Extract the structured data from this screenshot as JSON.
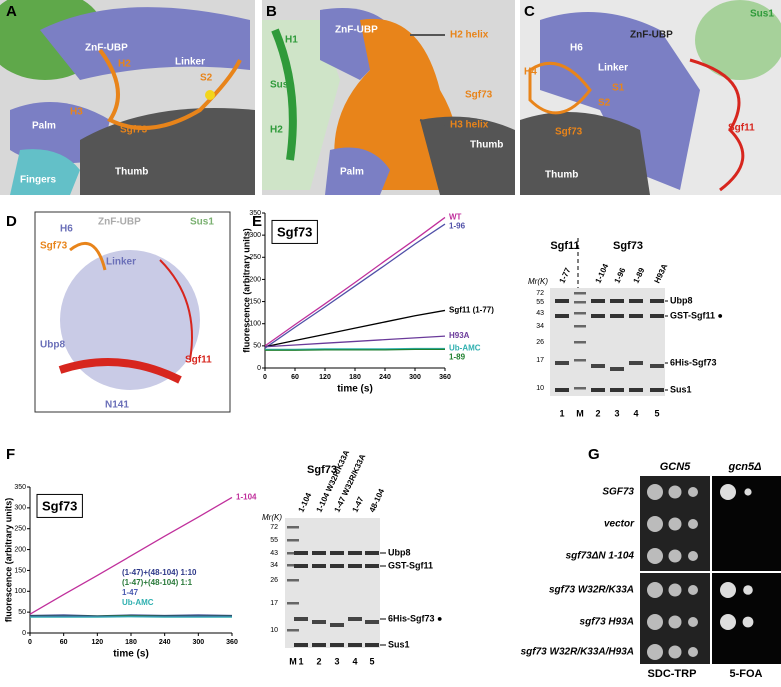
{
  "panels": {
    "a": {
      "label": "A",
      "texts": [
        "ZnF-UBP",
        "Linker",
        "H2",
        "Palm",
        "H3",
        "Sgf73",
        "S2",
        "Fingers",
        "Thumb"
      ]
    },
    "b": {
      "label": "B",
      "texts": [
        "H1",
        "ZnF-UBP",
        "H2 helix",
        "Sus1",
        "Sgf73",
        "H2",
        "H3 helix",
        "Thumb",
        "Palm"
      ]
    },
    "c": {
      "label": "C",
      "texts": [
        "ZnF-UBP",
        "Sus1",
        "H6",
        "H4",
        "Linker",
        "S1",
        "S2",
        "Sgf73",
        "Sgf11",
        "Thumb"
      ]
    },
    "d": {
      "label": "D",
      "texts": [
        "H6",
        "ZnF-UBP",
        "Sus1",
        "Sgf73",
        "Linker",
        "Ubp8",
        "Sgf11",
        "N141"
      ]
    },
    "e": {
      "label": "E"
    },
    "f": {
      "label": "F"
    },
    "g": {
      "label": "G",
      "columns": [
        "GCN5",
        "gcn5Δ"
      ],
      "rows": [
        "SGF73",
        "vector",
        "sgf73ΔN 1-104",
        "sgf73 W32R/K33A",
        "sgf73 H93A",
        "sgf73 W32R/K33A/H93A"
      ],
      "media": [
        "SDC-TRP",
        "5-FOA"
      ]
    }
  },
  "gels": [
    {
      "groups": [
        "Sgf11",
        "Sgf73"
      ],
      "mr_label": "Mr(K)",
      "markers": [
        "72",
        "55",
        "43",
        "34",
        "26",
        "17",
        "10"
      ],
      "lanes": [
        "1-77",
        "1-104",
        "1-96",
        "1-89",
        "H93A"
      ],
      "lane_numbers": [
        "1",
        "M",
        "2",
        "3",
        "4",
        "5"
      ],
      "bands": [
        "Ubp8",
        "GST-Sgf11 ●",
        "6His-Sgf73",
        "Sus1"
      ]
    },
    {
      "groups": [
        "Sgf73"
      ],
      "mr_label": "Mr(K)",
      "markers": [
        "72",
        "55",
        "43",
        "34",
        "26",
        "17",
        "10"
      ],
      "lanes": [
        "1-104",
        "1-104 W32R/K33A",
        "1-47 W32R/K33A",
        "1-47",
        "48-104"
      ],
      "lane_numbers": [
        "M",
        "1",
        "2",
        "3",
        "4",
        "5"
      ],
      "bands": [
        "Ubp8",
        "GST-Sgf11",
        "6His-Sgf73 ●",
        "Sus1"
      ]
    }
  ],
  "chart_data": [
    {
      "type": "line",
      "title": "Sgf73",
      "x_label": "time (s)",
      "y_label": "fluorescence (arbitrary units)",
      "xlim": [
        0,
        360
      ],
      "ylim": [
        0,
        350
      ],
      "xticks": [
        0,
        60,
        120,
        180,
        240,
        300,
        360
      ],
      "yticks": [
        0,
        50,
        100,
        150,
        200,
        250,
        300,
        350
      ],
      "x": [
        0,
        60,
        120,
        180,
        240,
        300,
        360
      ],
      "series": [
        {
          "name": "WT",
          "color": "#c0309c",
          "values": [
            50,
            98,
            145,
            193,
            242,
            290,
            340
          ]
        },
        {
          "name": "1-96",
          "color": "#5050a8",
          "values": [
            45,
            92,
            138,
            185,
            232,
            280,
            325
          ]
        },
        {
          "name": "Sgf11 (1-77)",
          "color": "#000000",
          "values": [
            48,
            62,
            76,
            90,
            104,
            118,
            130
          ]
        },
        {
          "name": "H93A",
          "color": "#6a3a9a",
          "values": [
            48,
            52,
            56,
            60,
            64,
            68,
            72
          ]
        },
        {
          "name": "Ub-AMC",
          "color": "#30b0b0",
          "values": [
            42,
            42,
            43,
            43,
            43,
            44,
            44
          ]
        },
        {
          "name": "1-89",
          "color": "#208030",
          "values": [
            40,
            40,
            41,
            41,
            41,
            42,
            42
          ]
        }
      ]
    },
    {
      "type": "line",
      "title": "Sgf73",
      "x_label": "time (s)",
      "y_label": "fluorescence (arbitrary units)",
      "xlim": [
        0,
        360
      ],
      "ylim": [
        0,
        350
      ],
      "xticks": [
        0,
        60,
        120,
        180,
        240,
        300,
        360
      ],
      "yticks": [
        0,
        50,
        100,
        150,
        200,
        250,
        300,
        350
      ],
      "x": [
        0,
        60,
        120,
        180,
        240,
        300,
        360
      ],
      "series": [
        {
          "name": "1-104",
          "color": "#c0309c",
          "values": [
            45,
            92,
            138,
            185,
            232,
            278,
            325
          ]
        },
        {
          "name": "(1-47)+(48-104) 1:10",
          "color": "#2f3a8a",
          "values": [
            42,
            43,
            41,
            43,
            42,
            43,
            42
          ]
        },
        {
          "name": "(1-47)+(48-104) 1:1",
          "color": "#2a7a3a",
          "values": [
            40,
            41,
            40,
            42,
            40,
            41,
            40
          ]
        },
        {
          "name": "1-47",
          "color": "#4a5ab0",
          "values": [
            39,
            40,
            39,
            40,
            39,
            40,
            39
          ]
        },
        {
          "name": "Ub-AMC",
          "color": "#30b0b0",
          "values": [
            38,
            38,
            38,
            39,
            38,
            38,
            38
          ]
        }
      ]
    }
  ]
}
